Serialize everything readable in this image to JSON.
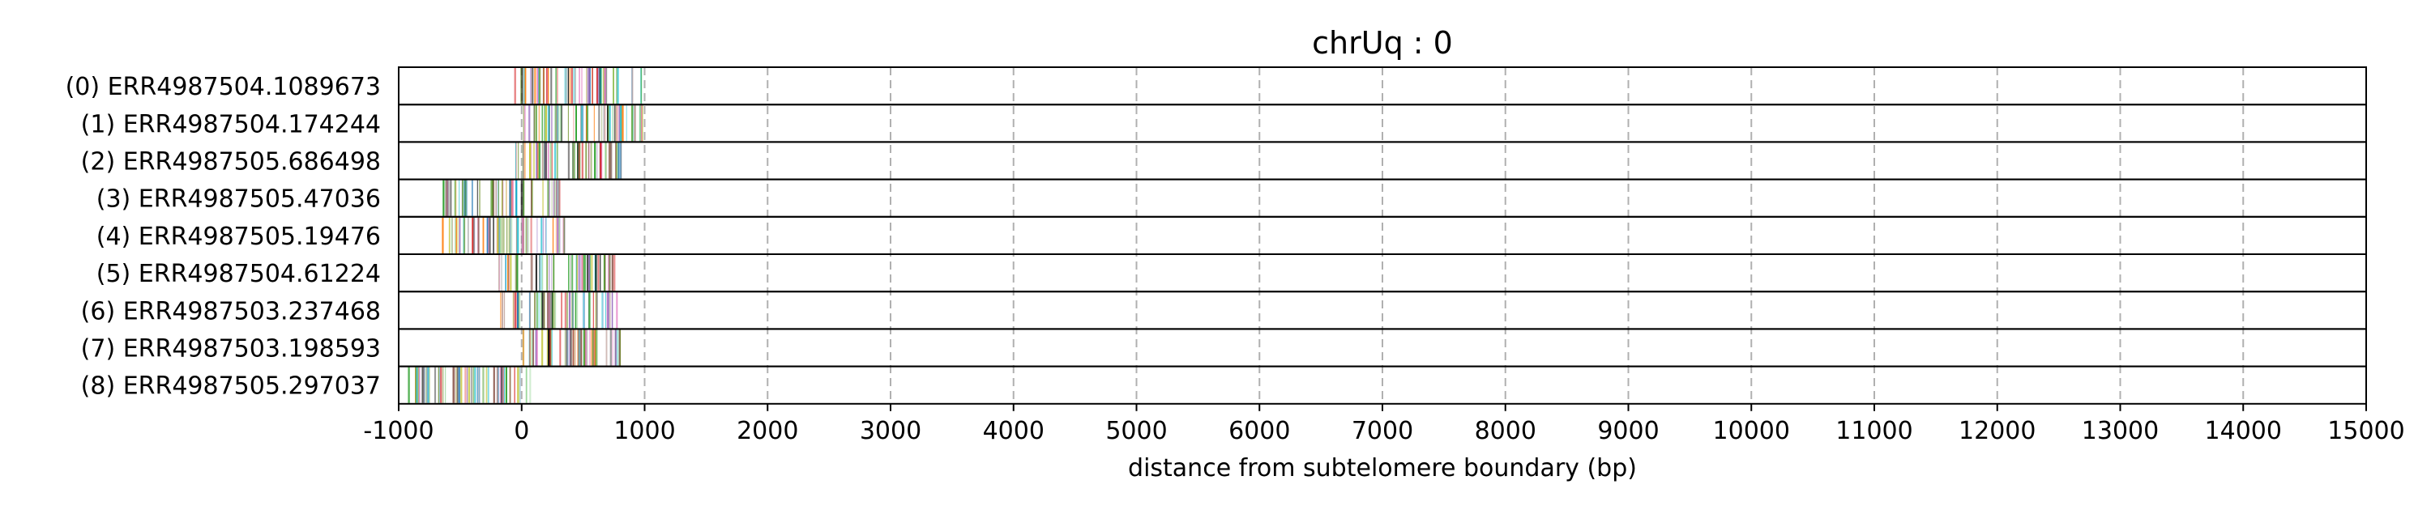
{
  "chart_data": {
    "type": "read-track plot",
    "title": "chrUq : 0",
    "xlabel": "distance from subtelomere boundary (bp)",
    "xlim": [
      -1000,
      15000
    ],
    "xticks": [
      -1000,
      0,
      1000,
      2000,
      3000,
      4000,
      5000,
      6000,
      7000,
      8000,
      9000,
      10000,
      11000,
      12000,
      13000,
      14000,
      15000
    ],
    "grid": "vertical dashed",
    "rows": [
      {
        "label": "(0) ERR4987504.1089673",
        "start": -100,
        "end": 1000
      },
      {
        "label": "(1) ERR4987504.174244",
        "start": 0,
        "end": 1000
      },
      {
        "label": "(2) ERR4987505.686498",
        "start": -50,
        "end": 820
      },
      {
        "label": "(3) ERR4987505.47036",
        "start": -650,
        "end": 330
      },
      {
        "label": "(4) ERR4987505.19476",
        "start": -650,
        "end": 380
      },
      {
        "label": "(5) ERR4987504.61224",
        "start": -220,
        "end": 770
      },
      {
        "label": "(6) ERR4987503.237468",
        "start": -200,
        "end": 780
      },
      {
        "label": "(7) ERR4987503.198593",
        "start": 0,
        "end": 820
      },
      {
        "label": "(8) ERR4987505.297037",
        "start": -920,
        "end": 80
      }
    ],
    "mark_colors": [
      "#2ca02c",
      "#8fd18f",
      "#4c9a2a",
      "#6b8e23",
      "#9467bd",
      "#d62728",
      "#17becf",
      "#ff7f0e",
      "#1f77b4",
      "#bcbd22",
      "#8c564b",
      "#e377c2",
      "#000000",
      "#7f7f7f"
    ]
  }
}
